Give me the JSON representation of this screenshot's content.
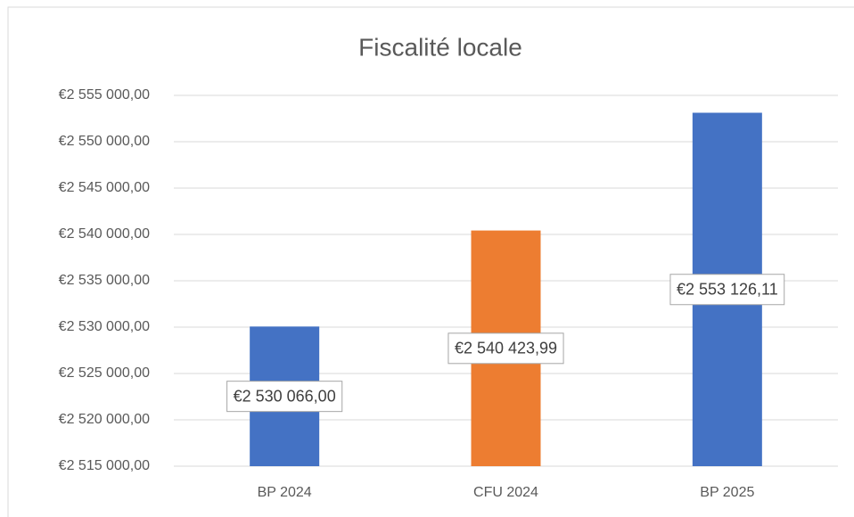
{
  "chart_data": {
    "type": "bar",
    "title": "Fiscalité locale",
    "categories": [
      "BP 2024",
      "CFU 2024",
      "BP 2025"
    ],
    "values": [
      2530066.0,
      2540423.99,
      2553126.11
    ],
    "value_labels": [
      "€2 530 066,00",
      "€2 540 423,99",
      "€2 553 126,11"
    ],
    "colors": [
      "#4472c4",
      "#ed7d31",
      "#4472c4"
    ],
    "ylim": [
      2515000,
      2555000
    ],
    "yticks": [
      {
        "value": 2515000,
        "label": "€2 515 000,00"
      },
      {
        "value": 2520000,
        "label": "€2 520 000,00"
      },
      {
        "value": 2525000,
        "label": "€2 525 000,00"
      },
      {
        "value": 2530000,
        "label": "€2 530 000,00"
      },
      {
        "value": 2535000,
        "label": "€2 535 000,00"
      },
      {
        "value": 2540000,
        "label": "€2 540 000,00"
      },
      {
        "value": 2545000,
        "label": "€2 545 000,00"
      },
      {
        "value": 2550000,
        "label": "€2 550 000,00"
      },
      {
        "value": 2555000,
        "label": "€2 555 000,00"
      }
    ],
    "grid": true
  }
}
